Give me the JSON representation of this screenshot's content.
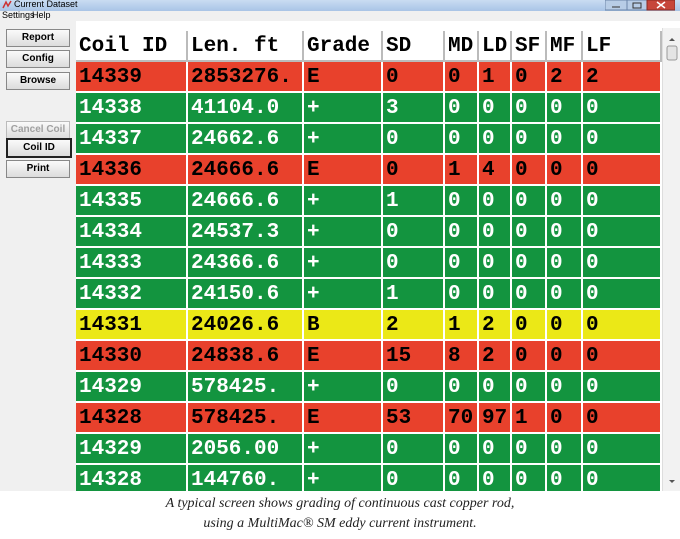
{
  "window": {
    "title": "Current Dataset",
    "menu": [
      "Settings",
      "Help"
    ]
  },
  "buttons": [
    {
      "label": "Report",
      "enabled": true
    },
    {
      "label": "Config",
      "enabled": true
    },
    {
      "label": "Browse",
      "enabled": true
    },
    {
      "label": "Cancel Coil",
      "enabled": false
    },
    {
      "label": "Coil ID",
      "enabled": true
    },
    {
      "label": "Print",
      "enabled": true
    }
  ],
  "table": {
    "columns": [
      "Coil ID",
      "Len. ft",
      "Grade",
      "SD",
      "MD",
      "LD",
      "SF",
      "MF",
      "LF"
    ],
    "rows": [
      {
        "color": "#e8412c",
        "cells": [
          "14339",
          "2853276.",
          "E",
          "0",
          "0",
          "1",
          "0",
          "2",
          "2"
        ]
      },
      {
        "color": "#13943f",
        "cells": [
          "14338",
          "41104.0",
          "+",
          "3",
          "0",
          "0",
          "0",
          "0",
          "0"
        ]
      },
      {
        "color": "#13943f",
        "cells": [
          "14337",
          "24662.6",
          "+",
          "0",
          "0",
          "0",
          "0",
          "0",
          "0"
        ]
      },
      {
        "color": "#e8412c",
        "cells": [
          "14336",
          "24666.6",
          "E",
          "0",
          "1",
          "4",
          "0",
          "0",
          "0"
        ]
      },
      {
        "color": "#13943f",
        "cells": [
          "14335",
          "24666.6",
          "+",
          "1",
          "0",
          "0",
          "0",
          "0",
          "0"
        ]
      },
      {
        "color": "#13943f",
        "cells": [
          "14334",
          "24537.3",
          "+",
          "0",
          "0",
          "0",
          "0",
          "0",
          "0"
        ]
      },
      {
        "color": "#13943f",
        "cells": [
          "14333",
          "24366.6",
          "+",
          "0",
          "0",
          "0",
          "0",
          "0",
          "0"
        ]
      },
      {
        "color": "#13943f",
        "cells": [
          "14332",
          "24150.6",
          "+",
          "1",
          "0",
          "0",
          "0",
          "0",
          "0"
        ]
      },
      {
        "color": "#ebe817",
        "cells": [
          "14331",
          "24026.6",
          "B",
          "2",
          "1",
          "2",
          "0",
          "0",
          "0"
        ]
      },
      {
        "color": "#e8412c",
        "cells": [
          "14330",
          "24838.6",
          "E",
          "15",
          "8",
          "2",
          "0",
          "0",
          "0"
        ]
      },
      {
        "color": "#13943f",
        "cells": [
          "14329",
          "578425.",
          "+",
          "0",
          "0",
          "0",
          "0",
          "0",
          "0"
        ]
      },
      {
        "color": "#e8412c",
        "cells": [
          "14328",
          "578425.",
          "E",
          "53",
          "70",
          "97",
          "1",
          "0",
          "0"
        ]
      },
      {
        "color": "#13943f",
        "cells": [
          "14329",
          "2056.00",
          "+",
          "0",
          "0",
          "0",
          "0",
          "0",
          "0"
        ]
      },
      {
        "color": "#13943f",
        "cells": [
          "14328",
          "144760.",
          "+",
          "0",
          "0",
          "0",
          "0",
          "0",
          "0"
        ]
      }
    ]
  },
  "caption": [
    "A typical screen shows grading of continuous cast copper rod,",
    "using a MultiMac® SM eddy current instrument."
  ]
}
